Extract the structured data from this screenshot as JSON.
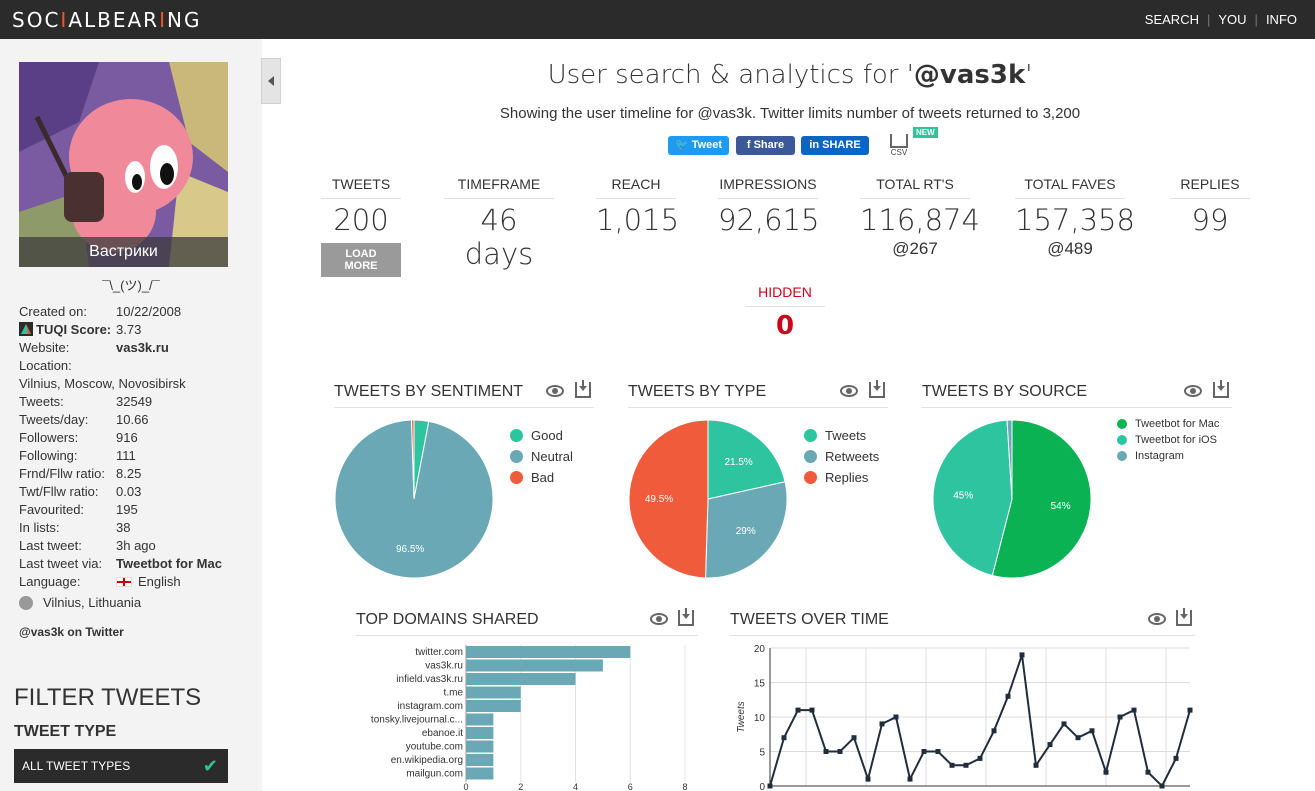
{
  "header": {
    "logo_pre": "SOC",
    "logo_acc1": "I",
    "logo_mid": "ALBEAR",
    "logo_acc2": "I",
    "logo_post": "NG",
    "nav": [
      "SEARCH",
      "YOU",
      "INFO"
    ]
  },
  "profile": {
    "display_name": "Вастрики",
    "bio": "¯\\_(ツ)_/¯",
    "fields": [
      {
        "k": "Created on:",
        "v": "10/22/2008"
      },
      {
        "k": "TUQI Score:",
        "v": "3.73"
      },
      {
        "k": "Website:",
        "v": "vas3k.ru"
      },
      {
        "k": "Location:",
        "v": ""
      },
      {
        "k": "Vilnius, Moscow, Novosibirsk",
        "v": ""
      },
      {
        "k": "Tweets:",
        "v": "32549"
      },
      {
        "k": "Tweets/day:",
        "v": "10.66"
      },
      {
        "k": "Followers:",
        "v": "916"
      },
      {
        "k": "Following:",
        "v": "111"
      },
      {
        "k": "Frnd/Fllw ratio:",
        "v": "8.25"
      },
      {
        "k": "Twt/Fllw ratio:",
        "v": "0.03"
      },
      {
        "k": "Favourited:",
        "v": "195"
      },
      {
        "k": "In lists:",
        "v": "38"
      },
      {
        "k": "Last tweet:",
        "v": "3h ago"
      },
      {
        "k": "Last tweet via:",
        "v": "Tweetbot for Mac"
      },
      {
        "k": "Language:",
        "v": "English"
      }
    ],
    "geo": "Vilnius, Lithuania",
    "twitter_link": "@vas3k on Twitter"
  },
  "filter": {
    "title": "FILTER TWEETS",
    "subtitle": "TWEET TYPE",
    "button": "ALL TWEET TYPES"
  },
  "main": {
    "title_pre": "User search & analytics for '",
    "title_user": "@vas3k",
    "title_post": "'",
    "subtitle": "Showing the user timeline for @vas3k. Twitter limits number of tweets returned to 3,200",
    "share": {
      "tweet": "Tweet",
      "facebook": "Share",
      "linkedin": "SHARE",
      "csv": "CSV",
      "new": "NEW"
    }
  },
  "stats": {
    "tweets": {
      "label": "TWEETS",
      "value": "200",
      "action": "LOAD MORE"
    },
    "timeframe": {
      "label": "TIMEFRAME",
      "value": "46 days"
    },
    "reach": {
      "label": "REACH",
      "value": "1,015"
    },
    "impressions": {
      "label": "IMPRESSIONS",
      "value": "92,615"
    },
    "total_rts": {
      "label": "TOTAL RT'S",
      "value": "116,874",
      "sub": "@267"
    },
    "total_faves": {
      "label": "TOTAL FAVES",
      "value": "157,358",
      "sub": "@489"
    },
    "replies": {
      "label": "REPLIES",
      "value": "99"
    },
    "hidden": {
      "label": "HIDDEN",
      "value": "0"
    }
  },
  "panels": {
    "sentiment": "TWEETS BY SENTIMENT",
    "type": "TWEETS BY TYPE",
    "source": "TWEETS BY SOURCE",
    "domains": "TOP DOMAINS SHARED",
    "over_time": "TWEETS OVER TIME"
  },
  "chart_data": [
    {
      "type": "pie",
      "title": "TWEETS BY SENTIMENT",
      "categories": [
        "Good",
        "Neutral",
        "Bad"
      ],
      "values": [
        3.0,
        96.5,
        0.5
      ],
      "labels": [
        "",
        "96.5%",
        ""
      ],
      "colors": [
        "#2ec4a0",
        "#6aa8b6",
        "#ef5b3b"
      ]
    },
    {
      "type": "pie",
      "title": "TWEETS BY TYPE",
      "categories": [
        "Tweets",
        "Retweets",
        "Replies"
      ],
      "values": [
        21.5,
        29,
        49.5
      ],
      "labels": [
        "21.5%",
        "29%",
        "49.5%"
      ],
      "colors": [
        "#2ec4a0",
        "#6aa8b6",
        "#ef5b3b"
      ]
    },
    {
      "type": "pie",
      "title": "TWEETS BY SOURCE",
      "categories": [
        "Tweetbot for Mac",
        "Tweetbot for iOS",
        "Instagram"
      ],
      "values": [
        54,
        45,
        1
      ],
      "labels": [
        "54%",
        "45%",
        ""
      ],
      "colors": [
        "#0bb254",
        "#2ec4a0",
        "#6aa8b6"
      ]
    },
    {
      "type": "bar",
      "orientation": "horizontal",
      "title": "TOP DOMAINS SHARED",
      "categories": [
        "twitter.com",
        "vas3k.ru",
        "infield.vas3k.ru",
        "t.me",
        "instagram.com",
        "tonsky.livejournal.c...",
        "ebanoe.it",
        "youtube.com",
        "en.wikipedia.org",
        "mailgun.com"
      ],
      "values": [
        6,
        5,
        4,
        2,
        2,
        1,
        1,
        1,
        1,
        1
      ],
      "xticks": [
        "0",
        "2",
        "4",
        "6",
        "8"
      ],
      "xlim": [
        0,
        8
      ],
      "color": "#6aa8b6"
    },
    {
      "type": "line",
      "title": "TWEETS OVER TIME",
      "ylabel": "Tweets",
      "ylim": [
        0,
        20
      ],
      "yticks": [
        "0",
        "5",
        "10",
        "15",
        "20"
      ],
      "values": [
        0,
        7,
        11,
        11,
        5,
        5,
        7,
        1,
        9,
        10,
        1,
        5,
        5,
        3,
        3,
        4,
        8,
        13,
        19,
        3,
        6,
        9,
        7,
        8,
        2,
        10,
        11,
        2,
        0,
        4,
        11
      ],
      "color": "#1f2d3d"
    }
  ]
}
